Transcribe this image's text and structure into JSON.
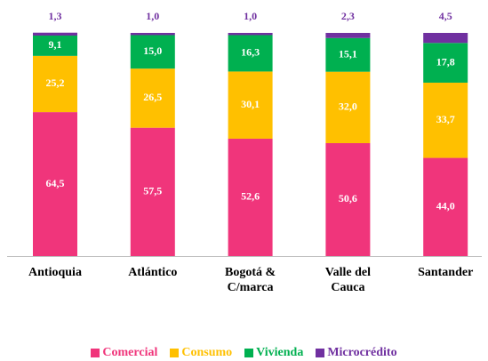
{
  "chart_data": {
    "type": "stacked_bar",
    "categories": [
      "Antioquia",
      "Atlántico",
      "Bogotá &\nC/marca",
      "Valle del\nCauca",
      "Santander"
    ],
    "ylim": [
      0,
      100
    ],
    "series": [
      {
        "name": "Comercial",
        "color": "#f0357b",
        "values": [
          64.5,
          57.5,
          52.6,
          50.6,
          44.0
        ],
        "value_labels": [
          "64,5",
          "57,5",
          "52,6",
          "50,6",
          "44,0"
        ]
      },
      {
        "name": "Consumo",
        "color": "#ffc000",
        "values": [
          25.2,
          26.5,
          30.1,
          32.0,
          33.7
        ],
        "value_labels": [
          "25,2",
          "26,5",
          "30,1",
          "32,0",
          "33,7"
        ]
      },
      {
        "name": "Vivienda",
        "color": "#00b050",
        "values": [
          9.1,
          15.0,
          16.3,
          15.1,
          17.8
        ],
        "value_labels": [
          "9,1",
          "15,0",
          "16,3",
          "15,1",
          "17,8"
        ]
      },
      {
        "name": "Microcrédito",
        "color": "#7030a0",
        "values": [
          1.3,
          1.0,
          1.0,
          2.3,
          4.5
        ],
        "value_labels": [
          "1,3",
          "1,0",
          "1,0",
          "2,3",
          "4,5"
        ]
      }
    ]
  }
}
